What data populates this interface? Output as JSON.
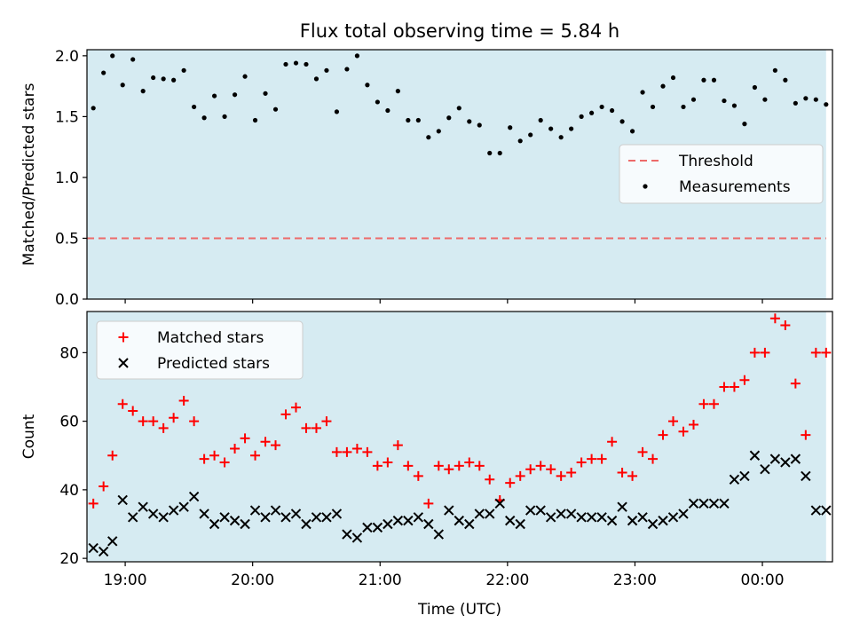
{
  "chart_data": [
    {
      "type": "scatter",
      "title": "Flux total observing time = 5.84 h",
      "ylabel": "Matched/Predicted stars",
      "xlabel": "",
      "xlim": [
        18.7,
        24.55
      ],
      "ylim": [
        0.0,
        2.05
      ],
      "yticks": [
        0.0,
        0.5,
        1.0,
        1.5,
        2.0
      ],
      "ytick_labels": [
        "0.0",
        "0.5",
        "1.0",
        "1.5",
        "2.0"
      ],
      "shaded_span": [
        18.7,
        24.5
      ],
      "threshold": 0.5,
      "legend": {
        "position": "center-right",
        "entries": [
          "Threshold",
          "Measurements"
        ]
      },
      "series": [
        {
          "name": "Measurements",
          "color": "#000000",
          "marker": "dot",
          "x": [
            18.75,
            18.83,
            18.9,
            18.98,
            19.06,
            19.14,
            19.22,
            19.3,
            19.38,
            19.46,
            19.54,
            19.62,
            19.7,
            19.78,
            19.86,
            19.94,
            20.02,
            20.1,
            20.18,
            20.26,
            20.34,
            20.42,
            20.5,
            20.58,
            20.66,
            20.74,
            20.82,
            20.9,
            20.98,
            21.06,
            21.14,
            21.22,
            21.3,
            21.38,
            21.46,
            21.54,
            21.62,
            21.7,
            21.78,
            21.86,
            21.94,
            22.02,
            22.1,
            22.18,
            22.26,
            22.34,
            22.42,
            22.5,
            22.58,
            22.66,
            22.74,
            22.82,
            22.9,
            22.98,
            23.06,
            23.14,
            23.22,
            23.3,
            23.38,
            23.46,
            23.54,
            23.62,
            23.7,
            23.78,
            23.86,
            23.94,
            24.02,
            24.1,
            24.18,
            24.26,
            24.34,
            24.42,
            24.5
          ],
          "values": [
            1.57,
            1.86,
            2.0,
            1.76,
            1.97,
            1.71,
            1.82,
            1.81,
            1.8,
            1.88,
            1.58,
            1.49,
            1.67,
            1.5,
            1.68,
            1.83,
            1.47,
            1.69,
            1.56,
            1.93,
            1.94,
            1.93,
            1.81,
            1.88,
            1.54,
            1.89,
            2.0,
            1.76,
            1.62,
            1.55,
            1.71,
            1.47,
            1.47,
            1.33,
            1.38,
            1.49,
            1.57,
            1.46,
            1.43,
            1.2,
            1.2,
            1.41,
            1.3,
            1.35,
            1.47,
            1.4,
            1.33,
            1.4,
            1.5,
            1.53,
            1.58,
            1.55,
            1.46,
            1.38,
            1.7,
            1.58,
            1.75,
            1.82,
            1.58,
            1.64,
            1.8,
            1.8,
            1.63,
            1.59,
            1.44,
            1.74,
            1.64,
            1.88,
            1.8,
            1.61,
            1.65,
            1.64,
            1.6
          ]
        },
        {
          "name": "Threshold",
          "color": "#ed6a6a",
          "style": "dashed",
          "x": [
            18.7,
            24.5
          ],
          "values": [
            0.5,
            0.5
          ]
        }
      ]
    },
    {
      "type": "scatter",
      "title": "",
      "ylabel": "Count",
      "xlabel": "Time (UTC)",
      "xlim": [
        18.7,
        24.55
      ],
      "ylim": [
        19,
        92
      ],
      "yticks": [
        20,
        40,
        60,
        80
      ],
      "ytick_labels": [
        "20",
        "40",
        "60",
        "80"
      ],
      "xticks": [
        19,
        20,
        21,
        22,
        23,
        24
      ],
      "xtick_labels": [
        "19:00",
        "20:00",
        "21:00",
        "22:00",
        "23:00",
        "00:00"
      ],
      "shaded_span": [
        18.7,
        24.5
      ],
      "legend": {
        "position": "top-left",
        "entries": [
          "Matched stars",
          "Predicted stars"
        ]
      },
      "series": [
        {
          "name": "Matched stars",
          "color": "#ff0000",
          "marker": "plus",
          "x": [
            18.75,
            18.83,
            18.9,
            18.98,
            19.06,
            19.14,
            19.22,
            19.3,
            19.38,
            19.46,
            19.54,
            19.62,
            19.7,
            19.78,
            19.86,
            19.94,
            20.02,
            20.1,
            20.18,
            20.26,
            20.34,
            20.42,
            20.5,
            20.58,
            20.66,
            20.74,
            20.82,
            20.9,
            20.98,
            21.06,
            21.14,
            21.22,
            21.3,
            21.38,
            21.46,
            21.54,
            21.62,
            21.7,
            21.78,
            21.86,
            21.94,
            22.02,
            22.1,
            22.18,
            22.26,
            22.34,
            22.42,
            22.5,
            22.58,
            22.66,
            22.74,
            22.82,
            22.9,
            22.98,
            23.06,
            23.14,
            23.22,
            23.3,
            23.38,
            23.46,
            23.54,
            23.62,
            23.7,
            23.78,
            23.86,
            23.94,
            24.02,
            24.1,
            24.18,
            24.26,
            24.34,
            24.42,
            24.5
          ],
          "values": [
            36,
            41,
            50,
            65,
            63,
            60,
            60,
            58,
            61,
            66,
            60,
            49,
            50,
            48,
            52,
            55,
            50,
            54,
            53,
            62,
            64,
            58,
            58,
            60,
            51,
            51,
            52,
            51,
            47,
            48,
            53,
            47,
            44,
            36,
            47,
            46,
            47,
            48,
            47,
            43,
            37,
            42,
            44,
            46,
            47,
            46,
            44,
            45,
            48,
            49,
            49,
            54,
            45,
            44,
            51,
            49,
            56,
            60,
            57,
            59,
            65,
            65,
            70,
            70,
            72,
            80,
            80,
            90,
            88,
            71,
            56,
            80,
            80
          ]
        },
        {
          "name": "Predicted stars",
          "color": "#000000",
          "marker": "x",
          "x": [
            18.75,
            18.83,
            18.9,
            18.98,
            19.06,
            19.14,
            19.22,
            19.3,
            19.38,
            19.46,
            19.54,
            19.62,
            19.7,
            19.78,
            19.86,
            19.94,
            20.02,
            20.1,
            20.18,
            20.26,
            20.34,
            20.42,
            20.5,
            20.58,
            20.66,
            20.74,
            20.82,
            20.9,
            20.98,
            21.06,
            21.14,
            21.22,
            21.3,
            21.38,
            21.46,
            21.54,
            21.62,
            21.7,
            21.78,
            21.86,
            21.94,
            22.02,
            22.1,
            22.18,
            22.26,
            22.34,
            22.42,
            22.5,
            22.58,
            22.66,
            22.74,
            22.82,
            22.9,
            22.98,
            23.06,
            23.14,
            23.22,
            23.3,
            23.38,
            23.46,
            23.54,
            23.62,
            23.7,
            23.78,
            23.86,
            23.94,
            24.02,
            24.1,
            24.18,
            24.26,
            24.34,
            24.42,
            24.5
          ],
          "values": [
            23,
            22,
            25,
            37,
            32,
            35,
            33,
            32,
            34,
            35,
            38,
            33,
            30,
            32,
            31,
            30,
            34,
            32,
            34,
            32,
            33,
            30,
            32,
            32,
            33,
            27,
            26,
            29,
            29,
            30,
            31,
            31,
            32,
            30,
            27,
            34,
            31,
            30,
            33,
            33,
            36,
            31,
            30,
            34,
            34,
            32,
            33,
            33,
            32,
            32,
            32,
            31,
            35,
            31,
            32,
            30,
            31,
            32,
            33,
            36,
            36,
            36,
            36,
            43,
            44,
            50,
            46,
            49,
            48,
            49,
            44,
            34,
            34
          ]
        }
      ]
    }
  ]
}
